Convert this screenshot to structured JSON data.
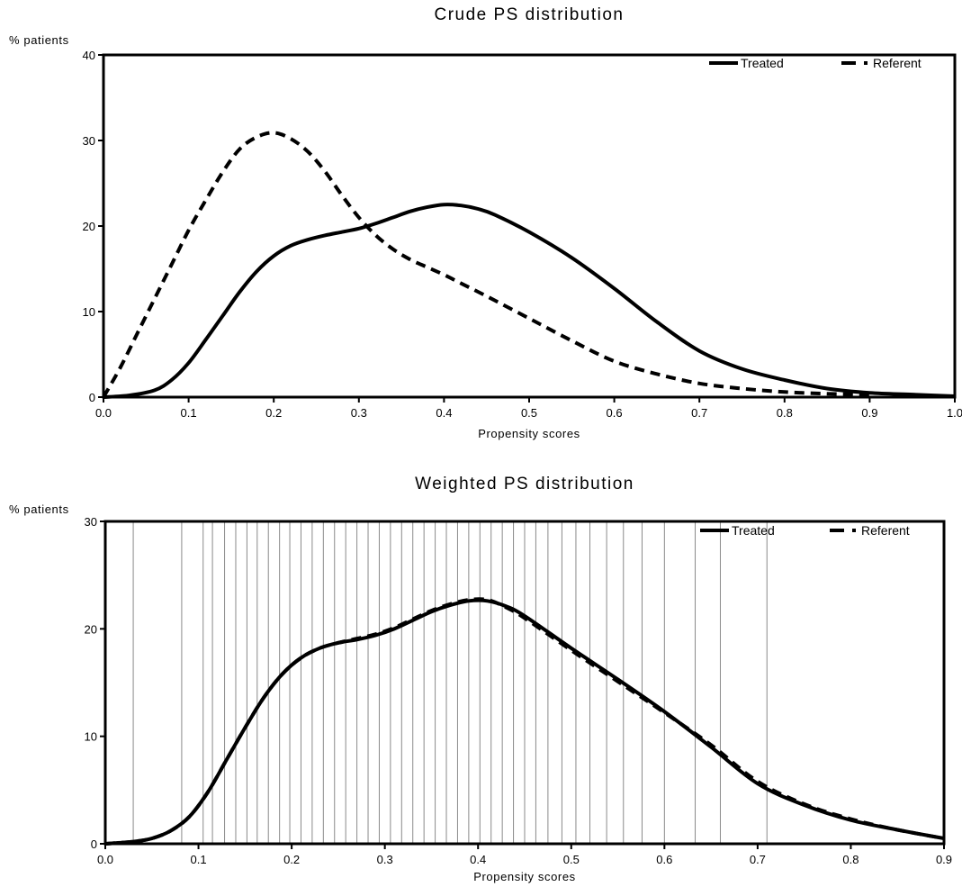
{
  "chart_data": [
    {
      "type": "line",
      "title": "Crude PS distribution",
      "xlabel": "Propensity scores",
      "ylabel": "% patients",
      "xlim": [
        0.0,
        1.0
      ],
      "ylim": [
        0,
        40
      ],
      "xticks": [
        "0.0",
        "0.1",
        "0.2",
        "0.3",
        "0.4",
        "0.5",
        "0.6",
        "0.7",
        "0.8",
        "0.9",
        "1.0"
      ],
      "yticks": [
        "0",
        "10",
        "20",
        "30",
        "40"
      ],
      "legend_position": "top-right",
      "grid": false,
      "series": [
        {
          "name": "Treated",
          "style": "solid",
          "x": [
            0.0,
            0.03,
            0.06,
            0.08,
            0.1,
            0.12,
            0.14,
            0.16,
            0.18,
            0.2,
            0.22,
            0.24,
            0.26,
            0.28,
            0.3,
            0.32,
            0.34,
            0.36,
            0.38,
            0.4,
            0.42,
            0.44,
            0.46,
            0.5,
            0.55,
            0.6,
            0.65,
            0.7,
            0.75,
            0.8,
            0.85,
            0.9,
            0.95,
            1.0
          ],
          "y": [
            0.0,
            0.2,
            0.8,
            2.0,
            4.0,
            6.7,
            9.5,
            12.3,
            14.7,
            16.5,
            17.7,
            18.4,
            18.9,
            19.3,
            19.7,
            20.3,
            21.0,
            21.7,
            22.2,
            22.5,
            22.4,
            22.0,
            21.3,
            19.3,
            16.3,
            12.7,
            8.8,
            5.4,
            3.3,
            2.0,
            1.0,
            0.5,
            0.3,
            0.1
          ]
        },
        {
          "name": "Referent",
          "style": "dashed",
          "x": [
            0.0,
            0.02,
            0.04,
            0.06,
            0.08,
            0.1,
            0.12,
            0.14,
            0.16,
            0.18,
            0.2,
            0.22,
            0.24,
            0.26,
            0.28,
            0.3,
            0.32,
            0.34,
            0.36,
            0.38,
            0.4,
            0.42,
            0.45,
            0.5,
            0.55,
            0.6,
            0.65,
            0.7,
            0.75,
            0.8,
            0.85,
            0.9
          ],
          "y": [
            0.0,
            3.5,
            7.5,
            11.5,
            15.5,
            19.5,
            23.0,
            26.3,
            29.0,
            30.4,
            30.9,
            30.2,
            28.7,
            26.4,
            23.6,
            21.0,
            18.9,
            17.3,
            16.1,
            15.2,
            14.3,
            13.3,
            11.8,
            9.2,
            6.6,
            4.2,
            2.7,
            1.6,
            1.0,
            0.6,
            0.4,
            0.3
          ]
        }
      ]
    },
    {
      "type": "line",
      "title": "Weighted PS distribution",
      "xlabel": "Propensity scores",
      "ylabel": "% patients",
      "xlim": [
        0.0,
        0.9
      ],
      "ylim": [
        0,
        30
      ],
      "xticks": [
        "0.0",
        "0.1",
        "0.2",
        "0.3",
        "0.4",
        "0.5",
        "0.6",
        "0.7",
        "0.8",
        "0.9"
      ],
      "yticks": [
        "0",
        "10",
        "20",
        "30"
      ],
      "legend_position": "top-right",
      "grid": false,
      "reference_lines_x": [
        0.03,
        0.082,
        0.105,
        0.115,
        0.128,
        0.14,
        0.152,
        0.163,
        0.175,
        0.187,
        0.198,
        0.21,
        0.222,
        0.234,
        0.246,
        0.258,
        0.27,
        0.282,
        0.294,
        0.306,
        0.318,
        0.33,
        0.342,
        0.354,
        0.366,
        0.378,
        0.39,
        0.402,
        0.414,
        0.426,
        0.438,
        0.45,
        0.462,
        0.475,
        0.49,
        0.505,
        0.52,
        0.538,
        0.556,
        0.576,
        0.6,
        0.633,
        0.66,
        0.71
      ],
      "series": [
        {
          "name": "Treated",
          "style": "solid",
          "x": [
            0.0,
            0.03,
            0.05,
            0.07,
            0.09,
            0.11,
            0.13,
            0.15,
            0.17,
            0.19,
            0.21,
            0.23,
            0.25,
            0.27,
            0.29,
            0.31,
            0.33,
            0.35,
            0.37,
            0.39,
            0.41,
            0.43,
            0.45,
            0.5,
            0.55,
            0.6,
            0.65,
            0.7,
            0.75,
            0.8,
            0.85,
            0.9
          ],
          "y": [
            0.0,
            0.2,
            0.5,
            1.2,
            2.5,
            4.8,
            7.8,
            10.8,
            13.6,
            15.8,
            17.3,
            18.2,
            18.7,
            19.0,
            19.4,
            20.0,
            20.8,
            21.6,
            22.2,
            22.6,
            22.6,
            22.1,
            21.2,
            18.2,
            15.3,
            12.3,
            9.0,
            5.6,
            3.6,
            2.2,
            1.3,
            0.5
          ]
        },
        {
          "name": "Referent",
          "style": "dashed",
          "x": [
            0.0,
            0.03,
            0.05,
            0.07,
            0.09,
            0.11,
            0.13,
            0.15,
            0.17,
            0.19,
            0.21,
            0.23,
            0.25,
            0.27,
            0.29,
            0.31,
            0.33,
            0.35,
            0.37,
            0.39,
            0.41,
            0.43,
            0.45,
            0.5,
            0.55,
            0.6,
            0.65,
            0.7,
            0.75,
            0.8,
            0.85,
            0.9
          ],
          "y": [
            0.0,
            0.2,
            0.5,
            1.2,
            2.5,
            4.8,
            7.8,
            10.8,
            13.6,
            15.8,
            17.3,
            18.2,
            18.7,
            19.1,
            19.5,
            20.1,
            20.9,
            21.7,
            22.3,
            22.7,
            22.7,
            22.0,
            21.0,
            18.0,
            15.1,
            12.2,
            9.2,
            5.8,
            3.7,
            2.3,
            1.3,
            0.5
          ]
        }
      ]
    }
  ]
}
